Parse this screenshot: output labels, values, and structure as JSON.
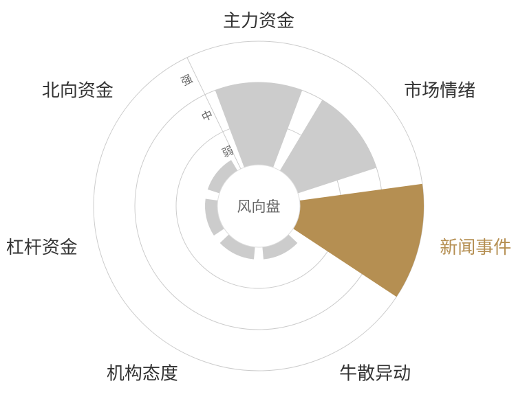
{
  "chart_data": {
    "type": "polar-bar",
    "center_label": "风向盘",
    "categories": [
      "主力资金",
      "市场情绪",
      "新闻事件",
      "牛散异动",
      "机构态度",
      "杠杆资金",
      "北向资金"
    ],
    "values": [
      2,
      2,
      3,
      0.3,
      0.3,
      0.3,
      0.3
    ],
    "highlight_index": 2,
    "radial_ticks": [
      "弱",
      "中",
      "强"
    ],
    "rlim": [
      0,
      3
    ],
    "grid": true,
    "colors": {
      "bar": "#cccccc",
      "highlight": "#b58f52",
      "grid": "#cccccc",
      "text": "#333333"
    }
  }
}
